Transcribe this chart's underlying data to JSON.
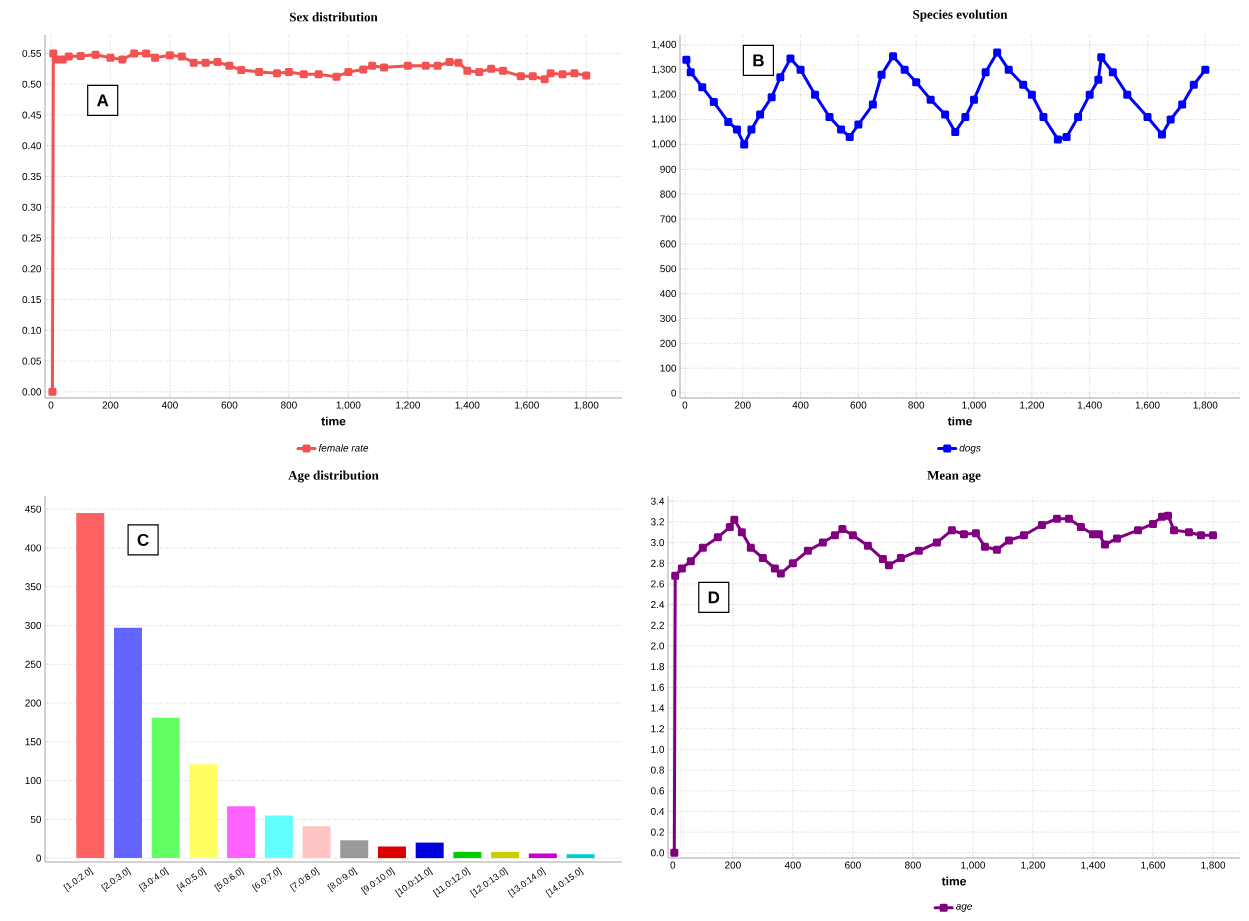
{
  "chart_data": [
    {
      "type": "line",
      "title": "Sex distribution",
      "xlabel": "time",
      "annotations": [
        "A"
      ],
      "grid": true,
      "legend": "bottom",
      "marker": "square",
      "line_style": "solid",
      "xlim": [
        -20,
        1920
      ],
      "ylim": [
        -0.01,
        0.58
      ],
      "xticks": [
        0,
        200,
        400,
        600,
        800,
        {
          "value": 1000,
          "label": "1,000"
        },
        {
          "value": 1200,
          "label": "1,200"
        },
        {
          "value": 1400,
          "label": "1,400"
        },
        {
          "value": 1600,
          "label": "1,600"
        },
        {
          "value": 1800,
          "label": "1,800"
        }
      ],
      "yticks": [
        {
          "value": 0,
          "label": "0.00"
        },
        {
          "value": 0.05,
          "label": "0.05"
        },
        {
          "value": 0.1,
          "label": "0.10"
        },
        {
          "value": 0.15,
          "label": "0.15"
        },
        {
          "value": 0.2,
          "label": "0.20"
        },
        {
          "value": 0.25,
          "label": "0.25"
        },
        {
          "value": 0.3,
          "label": "0.30"
        },
        {
          "value": 0.35,
          "label": "0.35"
        },
        {
          "value": 0.4,
          "label": "0.40"
        },
        {
          "value": 0.45,
          "label": "0.45"
        },
        {
          "value": 0.5,
          "label": "0.50"
        },
        {
          "value": 0.55,
          "label": "0.55"
        }
      ],
      "series": [
        {
          "name": "female rate",
          "color": "#f25252",
          "x": [
            5,
            8,
            20,
            40,
            60,
            100,
            150,
            200,
            240,
            280,
            320,
            350,
            400,
            440,
            480,
            520,
            560,
            600,
            640,
            700,
            760,
            800,
            850,
            900,
            960,
            1000,
            1050,
            1080,
            1120,
            1200,
            1260,
            1300,
            1340,
            1370,
            1400,
            1440,
            1480,
            1520,
            1580,
            1620,
            1660,
            1680,
            1720,
            1760,
            1800
          ],
          "values": [
            0.0,
            0.55,
            0.54,
            0.54,
            0.545,
            0.546,
            0.548,
            0.543,
            0.54,
            0.55,
            0.55,
            0.543,
            0.547,
            0.545,
            0.535,
            0.535,
            0.536,
            0.53,
            0.523,
            0.52,
            0.518,
            0.52,
            0.516,
            0.516,
            0.512,
            0.52,
            0.524,
            0.53,
            0.527,
            0.53,
            0.53,
            0.53,
            0.536,
            0.535,
            0.522,
            0.52,
            0.525,
            0.522,
            0.513,
            0.513,
            0.508,
            0.518,
            0.516,
            0.518,
            0.514
          ]
        }
      ]
    },
    {
      "type": "line",
      "title": "Species evolution",
      "xlabel": "time",
      "annotations": [
        "B"
      ],
      "grid": true,
      "legend": "bottom",
      "marker": "square",
      "line_style": "solid",
      "xlim": [
        -17,
        1920
      ],
      "ylim": [
        -20,
        1440
      ],
      "xticks": [
        0,
        200,
        400,
        600,
        800,
        {
          "value": 1000,
          "label": "1,000"
        },
        {
          "value": 1200,
          "label": "1,200"
        },
        {
          "value": 1400,
          "label": "1,400"
        },
        {
          "value": 1600,
          "label": "1,600"
        },
        {
          "value": 1800,
          "label": "1,800"
        }
      ],
      "yticks": [
        0,
        100,
        200,
        300,
        400,
        500,
        600,
        700,
        800,
        900,
        {
          "value": 1000,
          "label": "1,000"
        },
        {
          "value": 1100,
          "label": "1,100"
        },
        {
          "value": 1200,
          "label": "1,200"
        },
        {
          "value": 1300,
          "label": "1,300"
        },
        {
          "value": 1400,
          "label": "1,400"
        }
      ],
      "series": [
        {
          "name": "dogs",
          "color": "#0000ff",
          "x": [
            5,
            20,
            60,
            100,
            150,
            180,
            205,
            230,
            260,
            300,
            330,
            365,
            400,
            450,
            500,
            540,
            570,
            600,
            650,
            680,
            720,
            760,
            800,
            850,
            900,
            935,
            970,
            1000,
            1040,
            1080,
            1120,
            1170,
            1200,
            1240,
            1290,
            1320,
            1360,
            1400,
            1430,
            1440,
            1480,
            1530,
            1600,
            1650,
            1680,
            1720,
            1760,
            1800
          ],
          "values": [
            1340,
            1290,
            1230,
            1170,
            1090,
            1060,
            1000,
            1060,
            1120,
            1190,
            1270,
            1345,
            1300,
            1200,
            1110,
            1060,
            1030,
            1080,
            1160,
            1280,
            1355,
            1300,
            1250,
            1180,
            1120,
            1050,
            1110,
            1180,
            1290,
            1370,
            1300,
            1240,
            1200,
            1110,
            1020,
            1030,
            1110,
            1200,
            1260,
            1350,
            1290,
            1200,
            1110,
            1040,
            1100,
            1160,
            1240,
            1300
          ]
        }
      ]
    },
    {
      "type": "bar",
      "title": "Age distribution",
      "annotations": [
        "C"
      ],
      "grid": "y",
      "categories": [
        "[1.0:2.0]",
        "[2.0:3.0]",
        "[3.0:4.0]",
        "[4.0:5.0]",
        "[5.0:6.0]",
        "[6.0:7.0]",
        "[7.0:8.0]",
        "[8.0:9.0]",
        "[9.0:10.0]",
        "[10.0:11.0]",
        "[11.0:12.0]",
        "[12.0:13.0]",
        "[13.0:14.0]",
        "[14.0:15.0]"
      ],
      "values": [
        445,
        297,
        181,
        121,
        67,
        55,
        41,
        23,
        15,
        20,
        8,
        8,
        6,
        5
      ],
      "colors": [
        "#ff6262",
        "#6464ff",
        "#62ff62",
        "#ffff62",
        "#ff62ff",
        "#62ffff",
        "#ffc4c4",
        "#9a9a9a",
        "#dd0000",
        "#0000dd",
        "#00cc00",
        "#cccc00",
        "#cc00cc",
        "#00cccc"
      ],
      "ylim": [
        -5,
        467
      ],
      "yticks": [
        0,
        50,
        100,
        150,
        200,
        250,
        300,
        350,
        400,
        450
      ]
    },
    {
      "type": "line",
      "title": "Mean age",
      "xlabel": "time",
      "annotations": [
        "D"
      ],
      "grid": true,
      "legend": "bottom",
      "marker": "square",
      "line_style": "solid",
      "xlim": [
        -16,
        1890
      ],
      "ylim": [
        -0.05,
        3.45
      ],
      "xticks": [
        0,
        200,
        400,
        600,
        800,
        {
          "value": 1000,
          "label": "1,000"
        },
        {
          "value": 1200,
          "label": "1,200"
        },
        {
          "value": 1400,
          "label": "1,400"
        },
        {
          "value": 1600,
          "label": "1,600"
        },
        {
          "value": 1800,
          "label": "1,800"
        }
      ],
      "yticks": [
        {
          "value": 0,
          "label": "0.0"
        },
        0.2,
        0.4,
        0.6,
        0.8,
        {
          "value": 1,
          "label": "1.0"
        },
        1.2,
        1.4,
        1.6,
        1.8,
        {
          "value": 2,
          "label": "2.0"
        },
        2.2,
        2.4,
        2.6,
        2.8,
        {
          "value": 3,
          "label": "3.0"
        },
        3.2,
        3.4
      ],
      "series": [
        {
          "name": "age",
          "color": "#800080",
          "x": [
            5,
            8,
            30,
            60,
            100,
            150,
            190,
            205,
            230,
            260,
            300,
            340,
            360,
            400,
            450,
            500,
            540,
            565,
            600,
            650,
            700,
            720,
            760,
            820,
            880,
            930,
            970,
            1010,
            1040,
            1080,
            1120,
            1170,
            1230,
            1280,
            1320,
            1360,
            1400,
            1420,
            1440,
            1480,
            1550,
            1600,
            1630,
            1650,
            1670,
            1720,
            1760,
            1800
          ],
          "values": [
            0.0,
            2.68,
            2.75,
            2.82,
            2.95,
            3.05,
            3.15,
            3.22,
            3.1,
            2.95,
            2.85,
            2.75,
            2.7,
            2.8,
            2.92,
            3.0,
            3.07,
            3.13,
            3.07,
            2.97,
            2.84,
            2.78,
            2.85,
            2.92,
            3.0,
            3.12,
            3.08,
            3.09,
            2.96,
            2.93,
            3.02,
            3.07,
            3.17,
            3.23,
            3.23,
            3.15,
            3.08,
            3.08,
            2.98,
            3.04,
            3.12,
            3.18,
            3.25,
            3.26,
            3.12,
            3.1,
            3.07,
            3.07
          ]
        }
      ]
    }
  ]
}
